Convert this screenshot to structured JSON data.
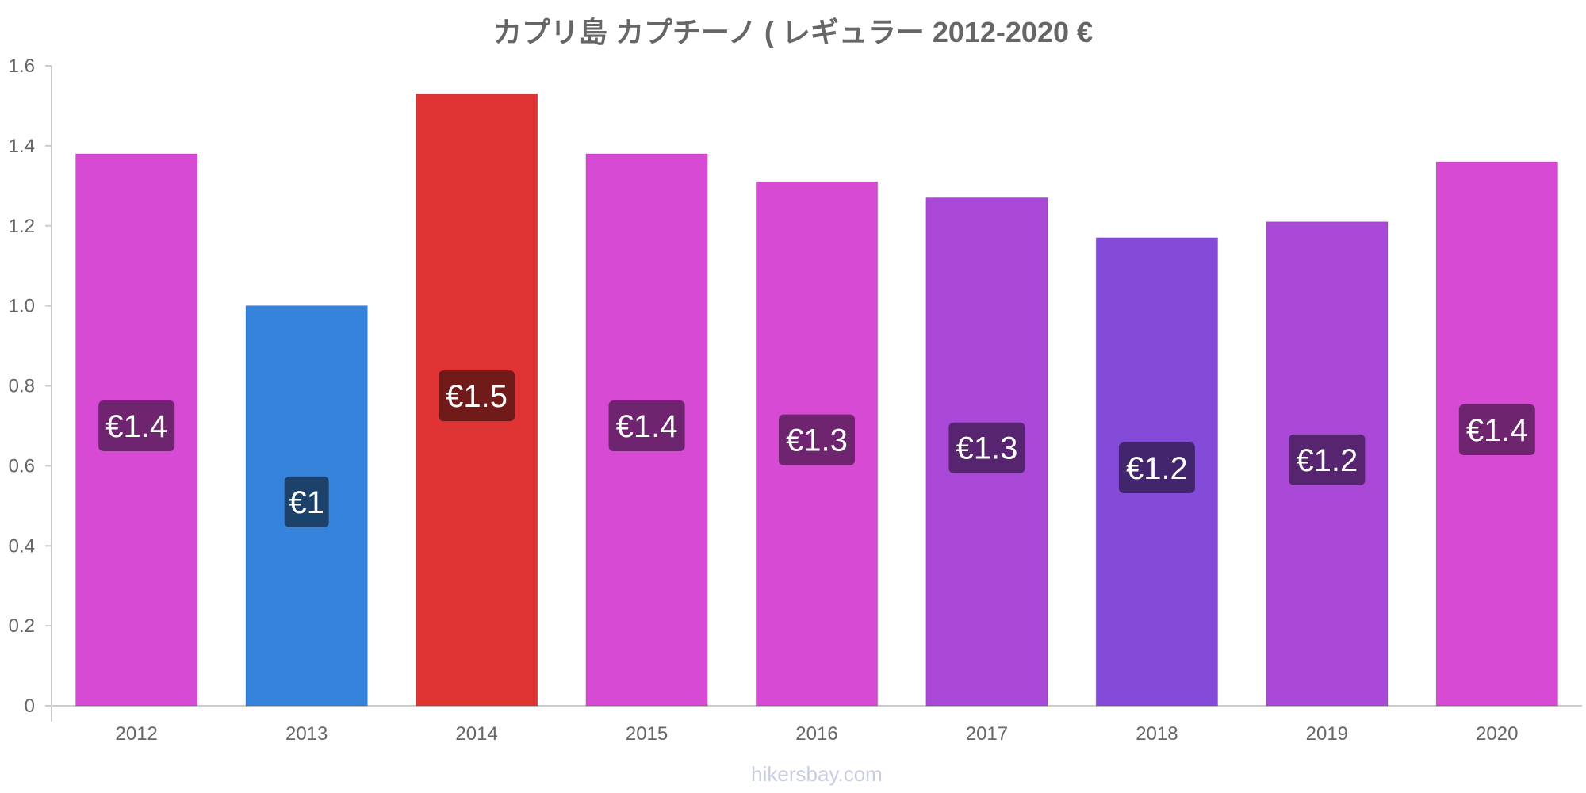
{
  "chart_data": {
    "type": "bar",
    "title": "カプリ島 カプチーノ ( レギュラー 2012-2020 €",
    "xlabel": "",
    "ylabel": "",
    "ylim": [
      0,
      1.6
    ],
    "yticks": [
      "0",
      "0.2",
      "0.4",
      "0.6",
      "0.8",
      "1.0",
      "1.2",
      "1.4",
      "1.6"
    ],
    "categories": [
      "2012",
      "2013",
      "2014",
      "2015",
      "2016",
      "2017",
      "2018",
      "2019",
      "2020"
    ],
    "values": [
      1.38,
      1.0,
      1.53,
      1.38,
      1.31,
      1.27,
      1.17,
      1.21,
      1.36
    ],
    "data_labels": [
      "€1.4",
      "€1",
      "€1.5",
      "€1.4",
      "€1.3",
      "€1.3",
      "€1.2",
      "€1.2",
      "€1.4"
    ],
    "bar_colors": [
      "#d64ad4",
      "#3683dc",
      "#e03434",
      "#d64ad4",
      "#d64ad4",
      "#aa48d8",
      "#844bd8",
      "#aa48d8",
      "#d64ad4"
    ],
    "label_colors": [
      "#6f2470",
      "#1c426c",
      "#711a1a",
      "#6f2470",
      "#6f2470",
      "#572470",
      "#42256d",
      "#572470",
      "#6f2470"
    ],
    "grid": false,
    "legend": "none"
  },
  "watermark": "hikersbay.com"
}
